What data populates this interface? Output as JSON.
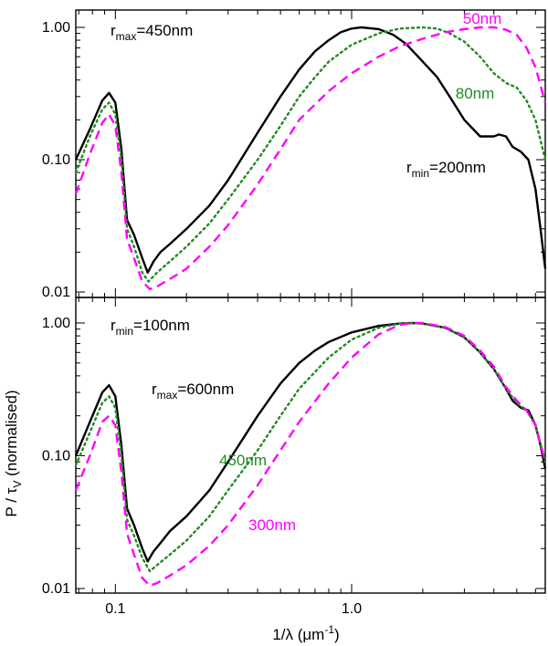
{
  "chart_data": [
    {
      "type": "line",
      "panel": "top",
      "xscale": "log",
      "yscale": "log",
      "xlim": [
        0.068,
        6.6
      ],
      "ylim": [
        0.01,
        1.35
      ],
      "yticks": [
        {
          "value": 0.01,
          "label": "0.01"
        },
        {
          "value": 0.1,
          "label": "0.10"
        },
        {
          "value": 1.0,
          "label": "1.00"
        }
      ],
      "xticks": [],
      "annotations": [
        {
          "id": "top-title",
          "base": "r",
          "sub": "max",
          "rest": "=450nm",
          "color": "#000000"
        },
        {
          "id": "top-50",
          "base": "50nm",
          "sub": "",
          "rest": "",
          "color": "#ff00ff"
        },
        {
          "id": "top-80",
          "base": "80nm",
          "sub": "",
          "rest": "",
          "color": "#228b22"
        },
        {
          "id": "top-200",
          "base": "r",
          "sub": "min",
          "rest": "=200nm",
          "color": "#000000"
        }
      ],
      "series": [
        {
          "name": "r_min=200nm",
          "color": "#000000",
          "style": "solid",
          "x": [
            0.068,
            0.078,
            0.088,
            0.094,
            0.1,
            0.106,
            0.112,
            0.12,
            0.13,
            0.137,
            0.145,
            0.155,
            0.17,
            0.2,
            0.25,
            0.3,
            0.4,
            0.5,
            0.6,
            0.7,
            0.8,
            0.9,
            1.0,
            1.1,
            1.3,
            1.5,
            1.7,
            2.0,
            2.3,
            2.6,
            3.0,
            3.5,
            4.0,
            4.2,
            4.5,
            4.8,
            5.2,
            5.6,
            6.0,
            6.3,
            6.6
          ],
          "y": [
            0.1,
            0.17,
            0.28,
            0.32,
            0.27,
            0.12,
            0.035,
            0.027,
            0.018,
            0.014,
            0.017,
            0.02,
            0.023,
            0.03,
            0.045,
            0.07,
            0.16,
            0.3,
            0.48,
            0.66,
            0.8,
            0.92,
            0.98,
            1.0,
            0.97,
            0.88,
            0.75,
            0.55,
            0.42,
            0.3,
            0.2,
            0.15,
            0.15,
            0.155,
            0.15,
            0.125,
            0.115,
            0.1,
            0.06,
            0.03,
            0.015
          ]
        },
        {
          "name": "80nm",
          "color": "#228b22",
          "style": "dotted",
          "x": [
            0.068,
            0.078,
            0.088,
            0.094,
            0.1,
            0.106,
            0.112,
            0.12,
            0.13,
            0.138,
            0.15,
            0.17,
            0.2,
            0.25,
            0.3,
            0.4,
            0.5,
            0.6,
            0.7,
            0.8,
            1.0,
            1.3,
            1.6,
            2.0,
            2.3,
            2.6,
            3.0,
            3.5,
            4.0,
            4.5,
            5.0,
            5.5,
            6.0,
            6.6
          ],
          "y": [
            0.08,
            0.15,
            0.24,
            0.27,
            0.22,
            0.1,
            0.03,
            0.022,
            0.014,
            0.012,
            0.014,
            0.017,
            0.022,
            0.033,
            0.05,
            0.1,
            0.18,
            0.3,
            0.42,
            0.55,
            0.74,
            0.9,
            0.98,
            1.0,
            0.98,
            0.9,
            0.78,
            0.6,
            0.45,
            0.38,
            0.35,
            0.28,
            0.2,
            0.1
          ]
        },
        {
          "name": "50nm",
          "color": "#ff00ff",
          "style": "dashed",
          "x": [
            0.068,
            0.078,
            0.088,
            0.094,
            0.1,
            0.106,
            0.112,
            0.12,
            0.13,
            0.14,
            0.15,
            0.17,
            0.2,
            0.25,
            0.3,
            0.4,
            0.5,
            0.6,
            0.8,
            1.0,
            1.3,
            1.6,
            2.0,
            2.5,
            3.0,
            3.5,
            4.0,
            4.5,
            5.0,
            5.5,
            6.0,
            6.6
          ],
          "y": [
            0.055,
            0.11,
            0.19,
            0.22,
            0.18,
            0.08,
            0.025,
            0.018,
            0.012,
            0.0105,
            0.011,
            0.0125,
            0.015,
            0.022,
            0.032,
            0.065,
            0.12,
            0.2,
            0.33,
            0.45,
            0.6,
            0.72,
            0.82,
            0.92,
            0.97,
            1.0,
            1.0,
            0.96,
            0.88,
            0.7,
            0.5,
            0.27
          ]
        }
      ]
    },
    {
      "type": "line",
      "panel": "bottom",
      "xscale": "log",
      "yscale": "log",
      "xlim": [
        0.068,
        6.6
      ],
      "ylim": [
        0.01,
        1.35
      ],
      "ylabel": "P / τV (normalised)",
      "ylabel_parts": {
        "pre": "P / τ",
        "sub": "V",
        "post": "  (normalised)"
      },
      "xlabel_parts": {
        "pre": "1/λ (μm",
        "sup": "-1",
        "post": ")"
      },
      "yticks": [
        {
          "value": 0.01,
          "label": "0.01"
        },
        {
          "value": 0.1,
          "label": "0.10"
        },
        {
          "value": 1.0,
          "label": "1.00"
        }
      ],
      "xticks": [
        {
          "value": 0.1,
          "label": "0.1"
        },
        {
          "value": 1.0,
          "label": "1.0"
        }
      ],
      "annotations": [
        {
          "id": "bot-title",
          "base": "r",
          "sub": "min",
          "rest": "=100nm",
          "color": "#000000"
        },
        {
          "id": "bot-600",
          "base": "r",
          "sub": "max",
          "rest": "=600nm",
          "color": "#000000"
        },
        {
          "id": "bot-450",
          "base": "450nm",
          "sub": "",
          "rest": "",
          "color": "#228b22"
        },
        {
          "id": "bot-300",
          "base": "300nm",
          "sub": "",
          "rest": "",
          "color": "#ff00ff"
        }
      ],
      "series": [
        {
          "name": "r_max=600nm",
          "color": "#000000",
          "style": "solid",
          "x": [
            0.068,
            0.078,
            0.088,
            0.094,
            0.1,
            0.106,
            0.112,
            0.12,
            0.13,
            0.137,
            0.145,
            0.155,
            0.17,
            0.2,
            0.25,
            0.3,
            0.4,
            0.5,
            0.6,
            0.7,
            0.8,
            1.0,
            1.3,
            1.6,
            1.8,
            2.0,
            2.5,
            3.0,
            3.5,
            4.0,
            4.5,
            4.8,
            5.2,
            5.6,
            6.0,
            6.3,
            6.6
          ],
          "y": [
            0.1,
            0.18,
            0.3,
            0.34,
            0.28,
            0.12,
            0.04,
            0.03,
            0.02,
            0.016,
            0.019,
            0.022,
            0.027,
            0.035,
            0.055,
            0.09,
            0.2,
            0.35,
            0.5,
            0.62,
            0.72,
            0.85,
            0.95,
            0.99,
            1.0,
            0.99,
            0.92,
            0.78,
            0.6,
            0.45,
            0.32,
            0.26,
            0.23,
            0.22,
            0.17,
            0.12,
            0.08
          ]
        },
        {
          "name": "450nm",
          "color": "#228b22",
          "style": "dotted",
          "x": [
            0.068,
            0.078,
            0.088,
            0.094,
            0.1,
            0.106,
            0.112,
            0.12,
            0.13,
            0.14,
            0.15,
            0.17,
            0.2,
            0.25,
            0.3,
            0.4,
            0.5,
            0.6,
            0.8,
            1.0,
            1.3,
            1.6,
            1.8,
            2.0,
            2.5,
            3.0,
            3.5,
            4.0,
            4.5,
            5.0,
            5.5,
            6.0,
            6.6
          ],
          "y": [
            0.085,
            0.15,
            0.25,
            0.28,
            0.23,
            0.1,
            0.033,
            0.025,
            0.017,
            0.0135,
            0.015,
            0.018,
            0.023,
            0.035,
            0.055,
            0.11,
            0.2,
            0.32,
            0.55,
            0.75,
            0.92,
            0.99,
            1.0,
            0.99,
            0.92,
            0.78,
            0.6,
            0.45,
            0.32,
            0.25,
            0.22,
            0.17,
            0.09
          ]
        },
        {
          "name": "300nm",
          "color": "#ff00ff",
          "style": "dashed",
          "x": [
            0.068,
            0.078,
            0.088,
            0.094,
            0.1,
            0.106,
            0.112,
            0.12,
            0.13,
            0.14,
            0.15,
            0.17,
            0.2,
            0.25,
            0.3,
            0.4,
            0.5,
            0.6,
            0.8,
            1.0,
            1.3,
            1.6,
            1.8,
            2.0,
            2.5,
            3.0,
            3.5,
            4.0,
            4.5,
            5.0,
            5.5,
            6.0,
            6.6
          ],
          "y": [
            0.055,
            0.1,
            0.18,
            0.2,
            0.17,
            0.075,
            0.026,
            0.018,
            0.012,
            0.0105,
            0.011,
            0.0125,
            0.015,
            0.021,
            0.03,
            0.06,
            0.11,
            0.18,
            0.35,
            0.55,
            0.82,
            0.97,
            1.0,
            1.0,
            0.93,
            0.8,
            0.62,
            0.47,
            0.33,
            0.26,
            0.22,
            0.17,
            0.09
          ]
        }
      ]
    }
  ]
}
